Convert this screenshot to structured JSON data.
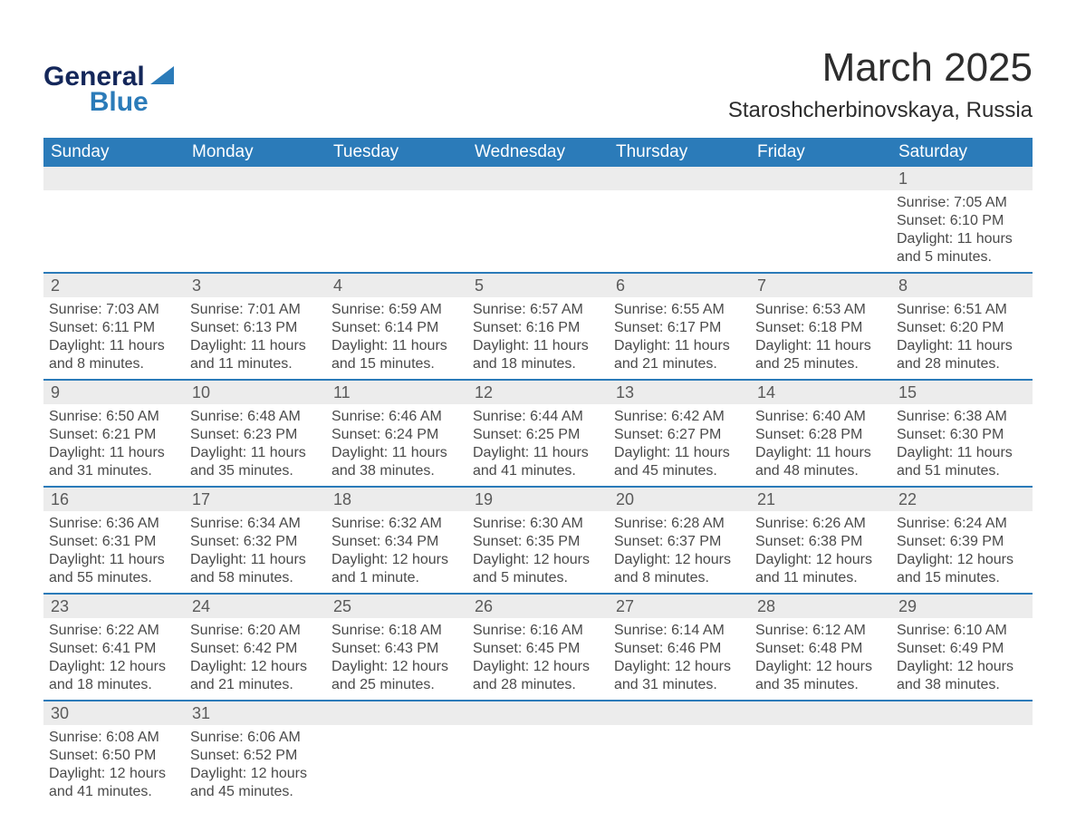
{
  "brand": {
    "line1": "General",
    "line2": "Blue"
  },
  "header": {
    "month_title": "March 2025",
    "location": "Staroshcherbinovskaya, Russia"
  },
  "colors": {
    "accent": "#2b7bb9",
    "header_bg": "#2b7bb9",
    "header_text": "#ffffff",
    "daynum_bg": "#ececec",
    "text": "#3a3a3a",
    "row_border": "#2b7bb9"
  },
  "typography": {
    "title_fontsize": 44,
    "location_fontsize": 24,
    "dayheader_fontsize": 19,
    "daynum_fontsize": 18,
    "body_fontsize": 16
  },
  "day_headers": [
    "Sunday",
    "Monday",
    "Tuesday",
    "Wednesday",
    "Thursday",
    "Friday",
    "Saturday"
  ],
  "labels": {
    "sunrise": "Sunrise: ",
    "sunset": "Sunset: ",
    "daylight": "Daylight: "
  },
  "weeks": [
    [
      null,
      null,
      null,
      null,
      null,
      null,
      {
        "n": "1",
        "sunrise": "7:05 AM",
        "sunset": "6:10 PM",
        "daylight": "11 hours and 5 minutes."
      }
    ],
    [
      {
        "n": "2",
        "sunrise": "7:03 AM",
        "sunset": "6:11 PM",
        "daylight": "11 hours and 8 minutes."
      },
      {
        "n": "3",
        "sunrise": "7:01 AM",
        "sunset": "6:13 PM",
        "daylight": "11 hours and 11 minutes."
      },
      {
        "n": "4",
        "sunrise": "6:59 AM",
        "sunset": "6:14 PM",
        "daylight": "11 hours and 15 minutes."
      },
      {
        "n": "5",
        "sunrise": "6:57 AM",
        "sunset": "6:16 PM",
        "daylight": "11 hours and 18 minutes."
      },
      {
        "n": "6",
        "sunrise": "6:55 AM",
        "sunset": "6:17 PM",
        "daylight": "11 hours and 21 minutes."
      },
      {
        "n": "7",
        "sunrise": "6:53 AM",
        "sunset": "6:18 PM",
        "daylight": "11 hours and 25 minutes."
      },
      {
        "n": "8",
        "sunrise": "6:51 AM",
        "sunset": "6:20 PM",
        "daylight": "11 hours and 28 minutes."
      }
    ],
    [
      {
        "n": "9",
        "sunrise": "6:50 AM",
        "sunset": "6:21 PM",
        "daylight": "11 hours and 31 minutes."
      },
      {
        "n": "10",
        "sunrise": "6:48 AM",
        "sunset": "6:23 PM",
        "daylight": "11 hours and 35 minutes."
      },
      {
        "n": "11",
        "sunrise": "6:46 AM",
        "sunset": "6:24 PM",
        "daylight": "11 hours and 38 minutes."
      },
      {
        "n": "12",
        "sunrise": "6:44 AM",
        "sunset": "6:25 PM",
        "daylight": "11 hours and 41 minutes."
      },
      {
        "n": "13",
        "sunrise": "6:42 AM",
        "sunset": "6:27 PM",
        "daylight": "11 hours and 45 minutes."
      },
      {
        "n": "14",
        "sunrise": "6:40 AM",
        "sunset": "6:28 PM",
        "daylight": "11 hours and 48 minutes."
      },
      {
        "n": "15",
        "sunrise": "6:38 AM",
        "sunset": "6:30 PM",
        "daylight": "11 hours and 51 minutes."
      }
    ],
    [
      {
        "n": "16",
        "sunrise": "6:36 AM",
        "sunset": "6:31 PM",
        "daylight": "11 hours and 55 minutes."
      },
      {
        "n": "17",
        "sunrise": "6:34 AM",
        "sunset": "6:32 PM",
        "daylight": "11 hours and 58 minutes."
      },
      {
        "n": "18",
        "sunrise": "6:32 AM",
        "sunset": "6:34 PM",
        "daylight": "12 hours and 1 minute."
      },
      {
        "n": "19",
        "sunrise": "6:30 AM",
        "sunset": "6:35 PM",
        "daylight": "12 hours and 5 minutes."
      },
      {
        "n": "20",
        "sunrise": "6:28 AM",
        "sunset": "6:37 PM",
        "daylight": "12 hours and 8 minutes."
      },
      {
        "n": "21",
        "sunrise": "6:26 AM",
        "sunset": "6:38 PM",
        "daylight": "12 hours and 11 minutes."
      },
      {
        "n": "22",
        "sunrise": "6:24 AM",
        "sunset": "6:39 PM",
        "daylight": "12 hours and 15 minutes."
      }
    ],
    [
      {
        "n": "23",
        "sunrise": "6:22 AM",
        "sunset": "6:41 PM",
        "daylight": "12 hours and 18 minutes."
      },
      {
        "n": "24",
        "sunrise": "6:20 AM",
        "sunset": "6:42 PM",
        "daylight": "12 hours and 21 minutes."
      },
      {
        "n": "25",
        "sunrise": "6:18 AM",
        "sunset": "6:43 PM",
        "daylight": "12 hours and 25 minutes."
      },
      {
        "n": "26",
        "sunrise": "6:16 AM",
        "sunset": "6:45 PM",
        "daylight": "12 hours and 28 minutes."
      },
      {
        "n": "27",
        "sunrise": "6:14 AM",
        "sunset": "6:46 PM",
        "daylight": "12 hours and 31 minutes."
      },
      {
        "n": "28",
        "sunrise": "6:12 AM",
        "sunset": "6:48 PM",
        "daylight": "12 hours and 35 minutes."
      },
      {
        "n": "29",
        "sunrise": "6:10 AM",
        "sunset": "6:49 PM",
        "daylight": "12 hours and 38 minutes."
      }
    ],
    [
      {
        "n": "30",
        "sunrise": "6:08 AM",
        "sunset": "6:50 PM",
        "daylight": "12 hours and 41 minutes."
      },
      {
        "n": "31",
        "sunrise": "6:06 AM",
        "sunset": "6:52 PM",
        "daylight": "12 hours and 45 minutes."
      },
      null,
      null,
      null,
      null,
      null
    ]
  ]
}
